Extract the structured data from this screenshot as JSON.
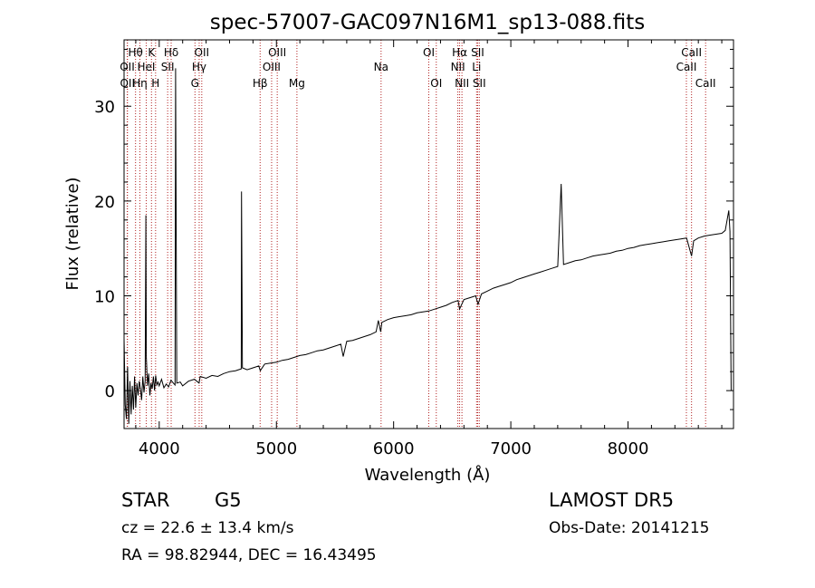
{
  "chart_data": {
    "type": "line",
    "title": "spec-57007-GAC097N16M1_sp13-088.fits",
    "xlabel": "Wavelength (Å)",
    "ylabel": "Flux (relative)",
    "xlim": [
      3700,
      8900
    ],
    "ylim": [
      -4,
      37
    ],
    "xticks": [
      4000,
      5000,
      6000,
      7000,
      8000
    ],
    "yticks": [
      0,
      10,
      20,
      30
    ],
    "grid": false,
    "series": [
      {
        "x": [
          3700,
          3710,
          3720,
          3730,
          3740,
          3750,
          3760,
          3770,
          3780,
          3790,
          3800,
          3810,
          3820,
          3830,
          3840,
          3850,
          3860,
          3870,
          3880,
          3886,
          3890,
          3900,
          3910,
          3920,
          3930,
          3940,
          3950,
          3960,
          3970,
          3980,
          3990,
          4000,
          4020,
          4040,
          4060,
          4080,
          4100,
          4120,
          4135,
          4140,
          4150,
          4180,
          4200,
          4250,
          4300,
          4340,
          4350,
          4400,
          4450,
          4500,
          4550,
          4600,
          4650,
          4700,
          4702,
          4710,
          4750,
          4800,
          4850,
          4862,
          4900,
          4950,
          5000,
          5050,
          5100,
          5150,
          5200,
          5250,
          5300,
          5350,
          5400,
          5450,
          5500,
          5550,
          5570,
          5600,
          5650,
          5700,
          5750,
          5800,
          5850,
          5870,
          5890,
          5900,
          5950,
          6000,
          6050,
          6100,
          6150,
          6200,
          6250,
          6300,
          6350,
          6400,
          6450,
          6500,
          6550,
          6563,
          6600,
          6650,
          6700,
          6720,
          6750,
          6800,
          6850,
          6900,
          6950,
          7000,
          7050,
          7100,
          7150,
          7200,
          7250,
          7300,
          7350,
          7400,
          7430,
          7450,
          7500,
          7550,
          7600,
          7650,
          7700,
          7750,
          7800,
          7850,
          7900,
          7950,
          8000,
          8050,
          8100,
          8150,
          8200,
          8250,
          8300,
          8350,
          8400,
          8450,
          8500,
          8542,
          8560,
          8600,
          8650,
          8700,
          8750,
          8800,
          8830,
          8860,
          8870,
          8880
        ],
        "y": [
          5.5,
          -1.5,
          -3.0,
          2.5,
          -3.5,
          1.0,
          -2.5,
          0.5,
          -2.0,
          1.5,
          -1.8,
          0.8,
          -0.5,
          1.0,
          0.2,
          -1.0,
          1.5,
          -0.2,
          1.0,
          18.5,
          3.5,
          0.5,
          1.8,
          -0.5,
          0.8,
          0.2,
          1.5,
          0.0,
          1.6,
          0.6,
          0.9,
          0.5,
          1.2,
          0.3,
          0.7,
          0.4,
          1.1,
          0.8,
          0.6,
          34.0,
          0.8,
          0.9,
          0.5,
          1.0,
          1.2,
          0.8,
          1.5,
          1.3,
          1.6,
          1.5,
          1.8,
          2.0,
          2.1,
          2.3,
          21.0,
          2.4,
          2.2,
          2.4,
          2.6,
          2.1,
          2.8,
          2.9,
          3.0,
          3.2,
          3.3,
          3.5,
          3.7,
          3.8,
          4.0,
          4.2,
          4.3,
          4.5,
          4.7,
          4.9,
          3.6,
          5.2,
          5.3,
          5.5,
          5.7,
          5.9,
          6.2,
          7.4,
          6.2,
          7.2,
          7.5,
          7.7,
          7.8,
          7.9,
          8.0,
          8.2,
          8.3,
          8.4,
          8.6,
          8.8,
          9.0,
          9.3,
          9.5,
          8.6,
          9.6,
          9.8,
          10.0,
          9.1,
          10.2,
          10.5,
          10.8,
          11.0,
          11.2,
          11.4,
          11.7,
          11.9,
          12.1,
          12.3,
          12.5,
          12.7,
          12.9,
          13.1,
          21.8,
          13.3,
          13.5,
          13.7,
          13.8,
          14.0,
          14.2,
          14.3,
          14.4,
          14.5,
          14.7,
          14.8,
          15.0,
          15.1,
          15.3,
          15.4,
          15.5,
          15.6,
          15.7,
          15.8,
          15.9,
          16.0,
          16.1,
          14.2,
          15.8,
          16.1,
          16.3,
          16.4,
          16.5,
          16.6,
          16.9,
          19.0,
          16.8,
          0.0
        ]
      }
    ],
    "line_markers": [
      {
        "label": "Hθ",
        "wavelength": 3798,
        "row": 1
      },
      {
        "label": "K",
        "wavelength": 3934,
        "row": 1
      },
      {
        "label": "Hδ",
        "wavelength": 4102,
        "row": 1
      },
      {
        "label": "OII",
        "wavelength": 4363,
        "row": 1
      },
      {
        "label": "OIII",
        "wavelength": 5007,
        "row": 1
      },
      {
        "label": "OI",
        "wavelength": 6300,
        "row": 1
      },
      {
        "label": "Hα",
        "wavelength": 6563,
        "row": 1
      },
      {
        "label": "SII",
        "wavelength": 6717,
        "row": 1
      },
      {
        "label": "CaII",
        "wavelength": 8542,
        "row": 1
      },
      {
        "label": "OII",
        "wavelength": 3727,
        "row": 2
      },
      {
        "label": "HeI",
        "wavelength": 3889,
        "row": 2
      },
      {
        "label": "SII",
        "wavelength": 4072,
        "row": 2
      },
      {
        "label": "Hγ",
        "wavelength": 4341,
        "row": 2
      },
      {
        "label": "OIII",
        "wavelength": 4959,
        "row": 2
      },
      {
        "label": "Na",
        "wavelength": 5893,
        "row": 2
      },
      {
        "label": "NII",
        "wavelength": 6548,
        "row": 2
      },
      {
        "label": "Li",
        "wavelength": 6708,
        "row": 2
      },
      {
        "label": "CaII",
        "wavelength": 8498,
        "row": 2
      },
      {
        "label": "OII",
        "wavelength": 3729,
        "row": 3
      },
      {
        "label": "Hη",
        "wavelength": 3835,
        "row": 3
      },
      {
        "label": "H",
        "wavelength": 3969,
        "row": 3
      },
      {
        "label": "G",
        "wavelength": 4305,
        "row": 3
      },
      {
        "label": "Hβ",
        "wavelength": 4861,
        "row": 3
      },
      {
        "label": "Mg",
        "wavelength": 5175,
        "row": 3
      },
      {
        "label": "OI",
        "wavelength": 6364,
        "row": 3
      },
      {
        "label": "NII",
        "wavelength": 6583,
        "row": 3
      },
      {
        "label": "SII",
        "wavelength": 6731,
        "row": 3
      },
      {
        "label": "CaII",
        "wavelength": 8662,
        "row": 3
      }
    ],
    "marker_color": "#b22222"
  },
  "info": {
    "object_class": "STAR",
    "subclass": "G5",
    "survey": "LAMOST  DR5",
    "velocity": "cz = 22.6 ± 13.4 km/s",
    "obs_date": "Obs-Date: 20141215",
    "coords": "RA =  98.82944, DEC =  16.43495"
  }
}
